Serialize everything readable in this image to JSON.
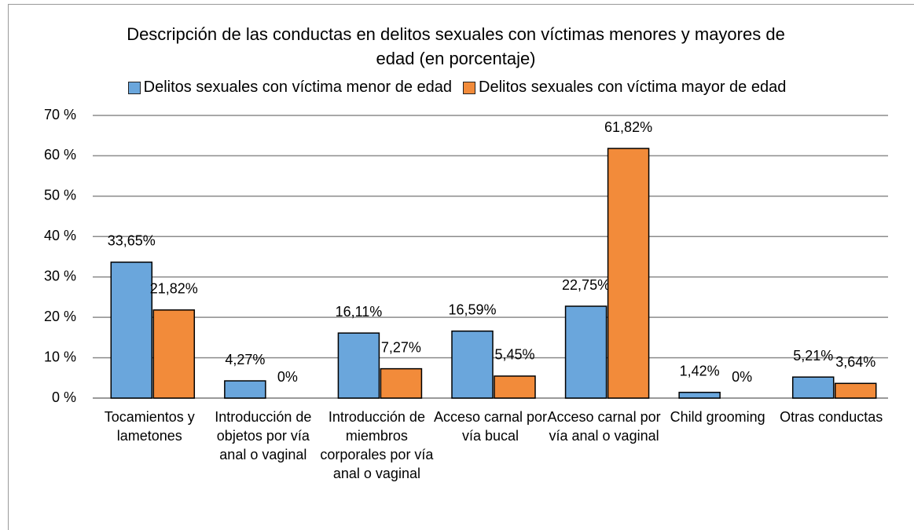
{
  "chart_data": {
    "type": "bar",
    "title": "Descripción de las conductas en delitos sexuales con víctimas menores y mayores de edad  (en porcentaje)",
    "categories": [
      "Tocamientos y lametones",
      "Introducción de objetos por vía anal o vaginal",
      "Introducción de miembros corporales por vía anal o vaginal",
      "Acceso carnal por vía bucal",
      "Acceso carnal por vía anal o vaginal",
      "Child grooming",
      "Otras conductas"
    ],
    "series": [
      {
        "name": "Delitos sexuales con víctima menor de edad",
        "color": "#6aa6dc",
        "values": [
          33.65,
          4.27,
          16.11,
          16.59,
          22.75,
          1.42,
          5.21
        ],
        "value_labels": [
          "33,65%",
          "4,27%",
          "16,11%",
          "16,59%",
          "22,75%",
          "1,42%",
          "5,21%"
        ]
      },
      {
        "name": "Delitos sexuales con víctima mayor de edad",
        "color": "#f28b3a",
        "values": [
          21.82,
          0,
          7.27,
          5.45,
          61.82,
          0,
          3.64
        ],
        "value_labels": [
          "21,82%",
          "0%",
          "7,27%",
          "5,45%",
          "61,82%",
          "0%",
          "3,64%"
        ]
      }
    ],
    "ylim": [
      0,
      70
    ],
    "yticks": [
      {
        "value": 0,
        "label": "0 %"
      },
      {
        "value": 10,
        "label": "10 %"
      },
      {
        "value": 20,
        "label": "20 %"
      },
      {
        "value": 30,
        "label": "30 %"
      },
      {
        "value": 40,
        "label": "40 %"
      },
      {
        "value": 50,
        "label": "50 %"
      },
      {
        "value": 60,
        "label": "60 %"
      },
      {
        "value": 70,
        "label": "70 %"
      }
    ],
    "grid": true,
    "legend": "top"
  }
}
